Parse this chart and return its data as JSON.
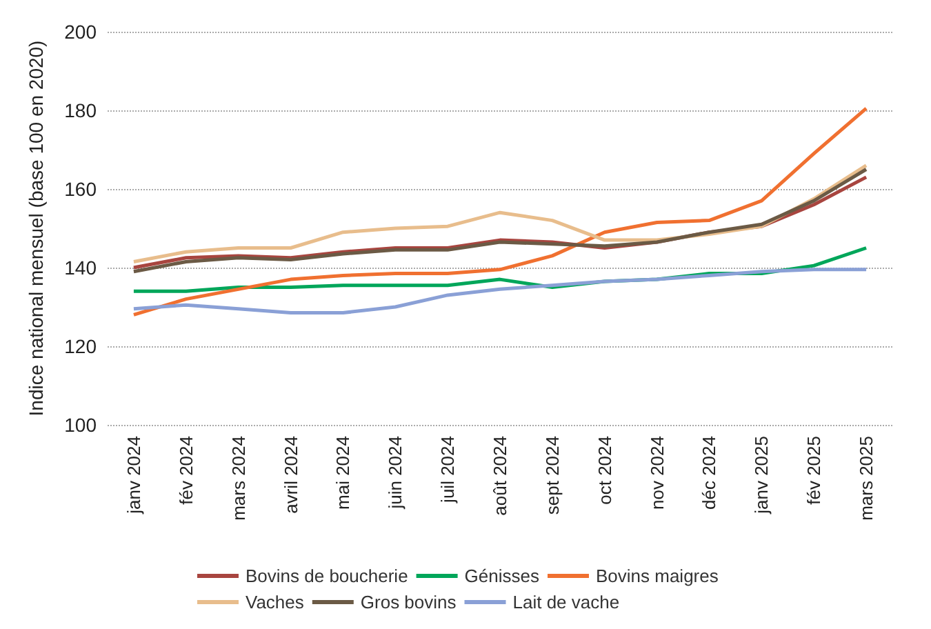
{
  "chart_data": {
    "type": "line",
    "ylabel": "Indice national mensuel (base 100 en 2020)",
    "categories": [
      "janv 2024",
      "fév 2024",
      "mars 2024",
      "avril 2024",
      "mai 2024",
      "juin 2024",
      "juil 2024",
      "août 2024",
      "sept 2024",
      "oct 2024",
      "nov 2024",
      "déc 2024",
      "janv 2025",
      "fév 2025",
      "mars 2025"
    ],
    "series": [
      {
        "name": "Bovins de boucherie",
        "color": "#a8453f",
        "values": [
          140,
          142.5,
          143,
          142.5,
          144,
          145,
          145,
          147,
          146.5,
          145,
          146.5,
          149,
          150.5,
          156,
          163
        ]
      },
      {
        "name": "Génisses",
        "color": "#00a65a",
        "values": [
          134,
          134,
          135,
          135,
          135.5,
          135.5,
          135.5,
          137,
          135,
          136.5,
          137,
          138.5,
          138.5,
          140.5,
          145
        ]
      },
      {
        "name": "Bovins maigres",
        "color": "#f07030",
        "values": [
          128,
          132,
          134.5,
          137,
          138,
          138.5,
          138.5,
          139.5,
          143,
          149,
          151.5,
          152,
          157,
          169,
          180.5
        ]
      },
      {
        "name": "Vaches",
        "color": "#e8bd8c",
        "values": [
          141.5,
          144,
          145,
          145,
          149,
          150,
          150.5,
          154,
          152,
          147,
          147,
          148.5,
          150.5,
          157.5,
          166
        ]
      },
      {
        "name": "Gros bovins",
        "color": "#6b5a45",
        "values": [
          139,
          141.5,
          142.5,
          142,
          143.5,
          144.5,
          144.5,
          146.5,
          146,
          145.5,
          146.5,
          149,
          151,
          157,
          165
        ]
      },
      {
        "name": "Lait de vache",
        "color": "#8aa0d6",
        "values": [
          129.5,
          130.5,
          129.5,
          128.5,
          128.5,
          130,
          133,
          134.5,
          135.5,
          136.5,
          137,
          138,
          139,
          139.5,
          139.5
        ]
      }
    ],
    "ylim": [
      100,
      200
    ],
    "yticks": [
      100,
      120,
      140,
      160,
      180,
      200
    ],
    "grid": "y",
    "legend": "bottom",
    "marker": "none",
    "line_style": "solid"
  }
}
